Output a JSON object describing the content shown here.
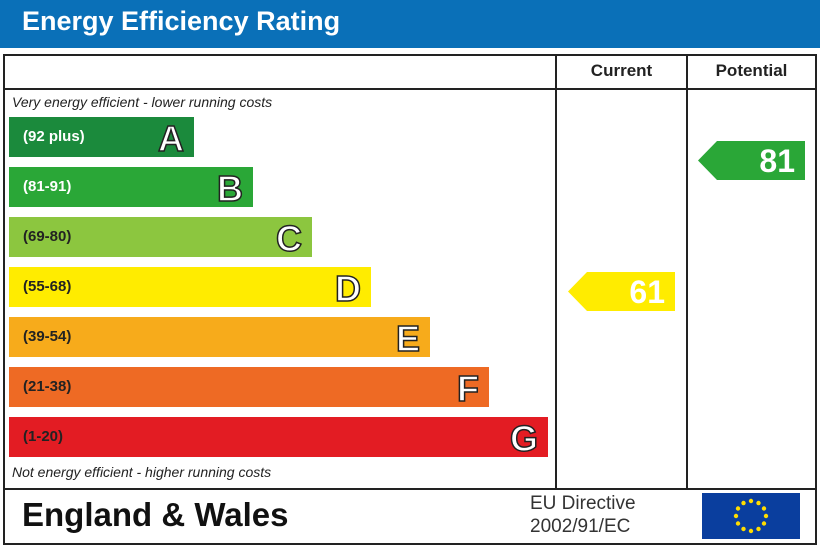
{
  "title": "Energy Efficiency Rating",
  "columns": {
    "current": "Current",
    "potential": "Potential"
  },
  "top_note": "Very energy efficient - lower running costs",
  "bottom_note": "Not energy efficient - higher running costs",
  "footer": {
    "country": "England & Wales",
    "directive_line1": "EU Directive",
    "directive_line2": "2002/91/EC",
    "flag": "eu-flag-icon"
  },
  "chart_data": {
    "type": "bar",
    "title": "Energy Efficiency Rating",
    "bands": [
      {
        "letter": "A",
        "range": "(92 plus)",
        "color": "#1b8a3c"
      },
      {
        "letter": "B",
        "range": "(81-91)",
        "color": "#2aa737"
      },
      {
        "letter": "C",
        "range": "(69-80)",
        "color": "#8cc63f"
      },
      {
        "letter": "D",
        "range": "(55-68)",
        "color": "#ffec00"
      },
      {
        "letter": "E",
        "range": "(39-54)",
        "color": "#f7ab1b"
      },
      {
        "letter": "F",
        "range": "(21-38)",
        "color": "#ee6a24"
      },
      {
        "letter": "G",
        "range": "(1-20)",
        "color": "#e31c23"
      }
    ],
    "current": {
      "value": 61,
      "band": "D",
      "color": "#ffec00"
    },
    "potential": {
      "value": 81,
      "band": "B",
      "color": "#2aa737"
    }
  }
}
